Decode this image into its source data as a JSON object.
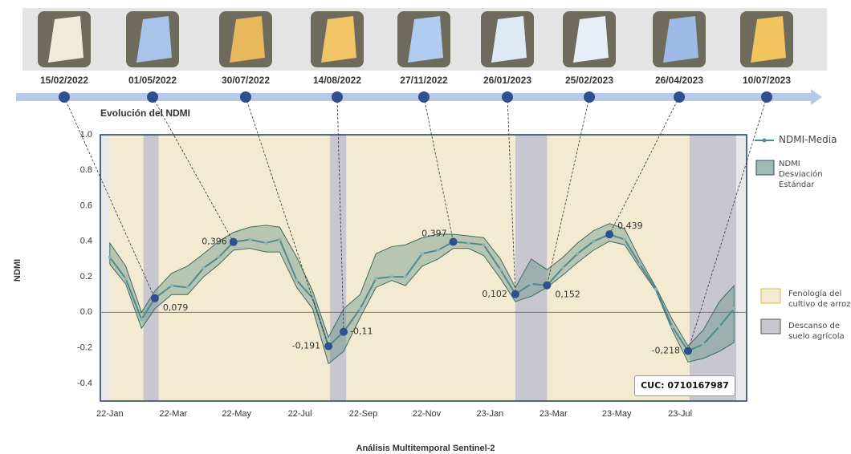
{
  "chart_data": {
    "type": "line",
    "title": "Evolución del NDMI",
    "footer": "Análisis Multitemporal Sentinel-2",
    "y_label": "NDMI",
    "annotation": "CUC: 0710167987",
    "xlim": [
      -0.3,
      20.1
    ],
    "xticks": [
      {
        "value": 0,
        "label": "22-Jan"
      },
      {
        "value": 2,
        "label": "22-Mar"
      },
      {
        "value": 4,
        "label": "22-May"
      },
      {
        "value": 6,
        "label": "22-Jul"
      },
      {
        "value": 8,
        "label": "22-Sep"
      },
      {
        "value": 10,
        "label": "22-Nov"
      },
      {
        "value": 12,
        "label": "23-Jan"
      },
      {
        "value": 14,
        "label": "23-Mar"
      },
      {
        "value": 16,
        "label": "23-May"
      },
      {
        "value": 18,
        "label": "23-Jul"
      }
    ],
    "ylim": [
      -0.5,
      1.0
    ],
    "yticks": [
      {
        "value": 1.0,
        "label": "1.0"
      },
      0.8,
      0.6,
      0.4,
      0.2,
      {
        "value": 0,
        "label": "0.0"
      },
      -0.2,
      -0.4
    ],
    "x": [
      0,
      0.5,
      1.0,
      1.42,
      1.95,
      2.45,
      2.96,
      3.44,
      3.9,
      4.42,
      4.93,
      5.36,
      5.9,
      6.4,
      6.9,
      7.38,
      7.9,
      8.4,
      8.9,
      9.33,
      9.86,
      10.36,
      10.84,
      11.32,
      11.8,
      12.33,
      12.8,
      13.3,
      13.8,
      14.3,
      14.76,
      15.27,
      15.77,
      16.25,
      16.73,
      17.24,
      17.75,
      18.25,
      18.73,
      19.24,
      19.7
    ],
    "series": [
      {
        "name": "NDMI-Media",
        "color": "#4f8a8f",
        "values": [
          0.31,
          0.19,
          -0.04,
          0.079,
          0.15,
          0.14,
          0.25,
          0.31,
          0.396,
          0.41,
          0.39,
          0.41,
          0.18,
          0.08,
          -0.191,
          -0.11,
          0.02,
          0.19,
          0.2,
          0.2,
          0.33,
          0.35,
          0.397,
          0.39,
          0.38,
          0.24,
          0.102,
          0.16,
          0.152,
          0.25,
          0.33,
          0.4,
          0.439,
          0.41,
          0.27,
          0.13,
          -0.08,
          -0.218,
          -0.18,
          -0.08,
          0.02
        ]
      }
    ],
    "band": {
      "name": "NDMI Desviación Estándar",
      "color": "#5f8f80",
      "upper": [
        0.39,
        0.26,
        0.0,
        0.12,
        0.22,
        0.26,
        0.33,
        0.4,
        0.45,
        0.48,
        0.49,
        0.48,
        0.31,
        0.12,
        -0.14,
        0.02,
        0.1,
        0.33,
        0.37,
        0.38,
        0.42,
        0.44,
        0.44,
        0.43,
        0.42,
        0.3,
        0.14,
        0.3,
        0.24,
        0.31,
        0.39,
        0.46,
        0.5,
        0.47,
        0.3,
        0.14,
        -0.04,
        -0.19,
        -0.1,
        0.06,
        0.15
      ],
      "lower": [
        0.27,
        0.16,
        -0.09,
        0.02,
        0.1,
        0.1,
        0.2,
        0.27,
        0.35,
        0.36,
        0.34,
        0.34,
        0.14,
        0.02,
        -0.29,
        -0.22,
        -0.03,
        0.14,
        0.18,
        0.15,
        0.26,
        0.3,
        0.36,
        0.36,
        0.32,
        0.19,
        0.06,
        0.09,
        0.14,
        0.21,
        0.28,
        0.35,
        0.4,
        0.38,
        0.25,
        0.12,
        -0.1,
        -0.28,
        -0.26,
        -0.22,
        -0.17
      ]
    },
    "highlights": {
      "color": "#2f4f93",
      "dates": [
        "15/02/2022",
        "01/05/2022",
        "30/07/2022",
        "14/08/2022",
        "27/11/2022",
        "26/01/2023",
        "25/02/2023",
        "26/04/2023",
        "10/07/2023"
      ],
      "x": [
        1.42,
        3.9,
        6.9,
        7.38,
        10.84,
        12.8,
        13.8,
        15.77,
        18.25
      ],
      "values": [
        0.079,
        0.396,
        -0.191,
        -0.11,
        0.397,
        0.102,
        0.152,
        0.439,
        -0.218
      ],
      "value_labels": [
        "0,079",
        "0,396",
        "-0,191",
        "-0,11",
        "0,397",
        "0,102",
        "0,152",
        "0,439",
        "-0,218"
      ]
    },
    "crop": {
      "name": "Fenología del cultivo de arroz",
      "color": "#f3ead2",
      "span": [
        -0.03,
        19.77
      ]
    },
    "fallow": {
      "name": "Descanso de suelo agrícola",
      "color": "#c8c6ce",
      "spans": [
        [
          1.06,
          1.54
        ],
        [
          6.95,
          7.46
        ],
        [
          12.8,
          13.8
        ],
        [
          18.3,
          19.77
        ]
      ]
    }
  }
}
